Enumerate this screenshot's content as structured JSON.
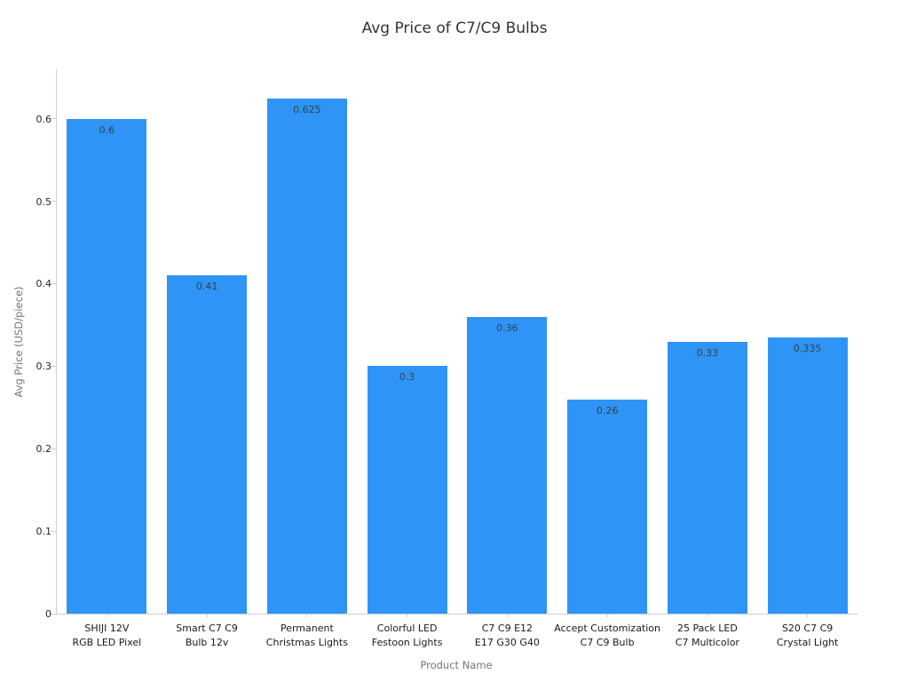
{
  "chart_data": {
    "type": "bar",
    "title": "Avg Price of C7/C9 Bulbs",
    "xlabel": "Product Name",
    "ylabel": "Avg Price (USD/piece)",
    "categories": [
      "SHIJI 12V\nRGB LED Pixel",
      "Smart C7 C9\nBulb 12v",
      "Permanent\nChristmas Lights",
      "Colorful LED\nFestoon Lights",
      "C7 C9 E12\nE17 G30 G40",
      "Accept Customization\nC7 C9 Bulb",
      "25 Pack LED\nC7 Multicolor",
      "S20 C7 C9\nCrystal Light"
    ],
    "values": [
      0.6,
      0.41,
      0.625,
      0.3,
      0.36,
      0.26,
      0.33,
      0.335
    ],
    "value_labels": [
      "0.6",
      "0.41",
      "0.625",
      "0.3",
      "0.36",
      "0.26",
      "0.33",
      "0.335"
    ],
    "yticks": [
      {
        "value": 0.0,
        "label": "0"
      },
      {
        "value": 0.1,
        "label": "0.1"
      },
      {
        "value": 0.2,
        "label": "0.2"
      },
      {
        "value": 0.3,
        "label": "0.3"
      },
      {
        "value": 0.4,
        "label": "0.4"
      },
      {
        "value": 0.5,
        "label": "0.5"
      },
      {
        "value": 0.6,
        "label": "0.6"
      }
    ],
    "ylim": [
      0,
      0.66
    ],
    "bar_color": "#2E94F5",
    "grid": false,
    "legend": "none"
  }
}
